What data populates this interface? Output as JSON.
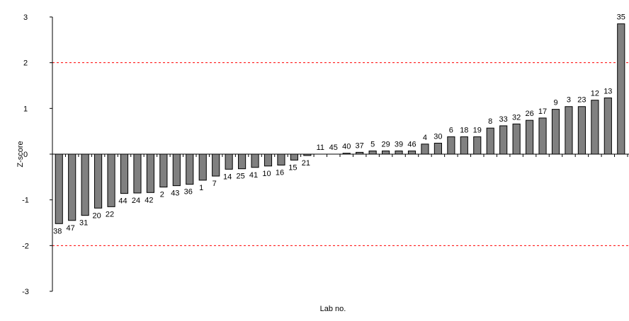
{
  "chart_data": {
    "type": "bar",
    "title": "",
    "xlabel": "Lab no.",
    "ylabel": "Z-score",
    "ylim": [
      -3,
      3
    ],
    "yticks": [
      "3",
      "2",
      "1",
      "0",
      "-1",
      "-2",
      "-3"
    ],
    "ytick_values": [
      3,
      2,
      1,
      0,
      -1,
      -2,
      -3
    ],
    "reference_lines": [
      2,
      -2
    ],
    "reference_line_color": "#ff0000",
    "bar_color": "#808080",
    "grid": false,
    "categories": [
      "38",
      "47",
      "31",
      "20",
      "22",
      "44",
      "24",
      "42",
      "2",
      "43",
      "36",
      "1",
      "7",
      "14",
      "25",
      "41",
      "10",
      "16",
      "15",
      "21",
      "11",
      "45",
      "40",
      "37",
      "5",
      "29",
      "39",
      "46",
      "4",
      "30",
      "6",
      "18",
      "19",
      "8",
      "33",
      "32",
      "26",
      "17",
      "9",
      "3",
      "23",
      "12",
      "13",
      "35"
    ],
    "values": [
      -1.52,
      -1.45,
      -1.34,
      -1.18,
      -1.15,
      -0.86,
      -0.85,
      -0.84,
      -0.72,
      -0.69,
      -0.66,
      -0.57,
      -0.48,
      -0.33,
      -0.32,
      -0.29,
      -0.26,
      -0.24,
      -0.13,
      -0.03,
      0.0,
      0.0,
      0.02,
      0.04,
      0.07,
      0.07,
      0.07,
      0.07,
      0.22,
      0.24,
      0.38,
      0.38,
      0.38,
      0.57,
      0.62,
      0.66,
      0.74,
      0.79,
      0.98,
      1.04,
      1.04,
      1.18,
      1.23,
      2.85
    ]
  }
}
